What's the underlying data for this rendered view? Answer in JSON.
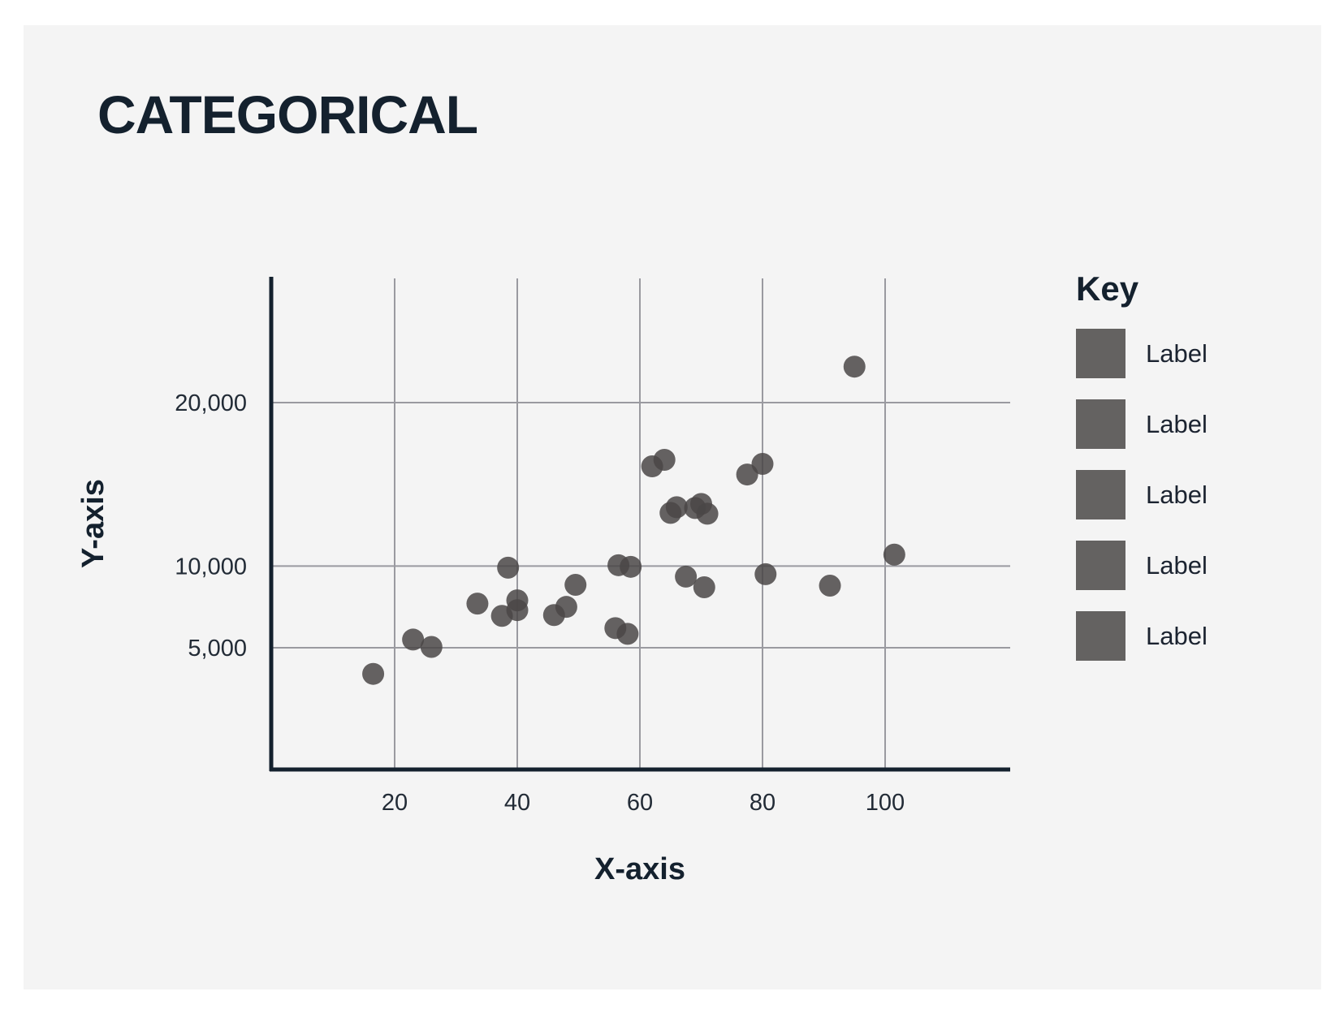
{
  "colors": {
    "background": "#f4f4f4",
    "text": "#14212e",
    "grid": "#9a9aa0",
    "axis": "#14212e",
    "point": "#4a4746",
    "swatch": "#646261"
  },
  "chart_data": {
    "type": "scatter",
    "title": "CATEGORICAL",
    "xlabel": "X-axis",
    "ylabel": "Y-axis",
    "xlim": [
      0,
      120
    ],
    "ylim": [
      0,
      25000
    ],
    "xticks": [
      20,
      40,
      60,
      80,
      100
    ],
    "xtick_labels": [
      "20",
      "40",
      "60",
      "80",
      "100"
    ],
    "yticks": [
      5000,
      10000,
      20000
    ],
    "ytick_labels": [
      "5,000",
      "10,000",
      "20,000"
    ],
    "grid": true,
    "legend_title": "Key",
    "legend_position": "right",
    "legend": [
      "Label",
      "Label",
      "Label",
      "Label",
      "Label"
    ],
    "points": [
      {
        "x": 16.5,
        "y": 3400
      },
      {
        "x": 23,
        "y": 5500
      },
      {
        "x": 26,
        "y": 5050
      },
      {
        "x": 33.5,
        "y": 7700
      },
      {
        "x": 37.5,
        "y": 6950
      },
      {
        "x": 38.5,
        "y": 9900
      },
      {
        "x": 40,
        "y": 7900
      },
      {
        "x": 40,
        "y": 7300
      },
      {
        "x": 46,
        "y": 7000
      },
      {
        "x": 48,
        "y": 7500
      },
      {
        "x": 49.5,
        "y": 8850
      },
      {
        "x": 56,
        "y": 6200
      },
      {
        "x": 56.5,
        "y": 10050
      },
      {
        "x": 58,
        "y": 5850
      },
      {
        "x": 58.5,
        "y": 9950
      },
      {
        "x": 62,
        "y": 16100
      },
      {
        "x": 64,
        "y": 16500
      },
      {
        "x": 65,
        "y": 13250
      },
      {
        "x": 66,
        "y": 13600
      },
      {
        "x": 67.5,
        "y": 9350
      },
      {
        "x": 69,
        "y": 13550
      },
      {
        "x": 70,
        "y": 13800
      },
      {
        "x": 70.5,
        "y": 8700
      },
      {
        "x": 71,
        "y": 13200
      },
      {
        "x": 77.5,
        "y": 15600
      },
      {
        "x": 80,
        "y": 16250
      },
      {
        "x": 80.5,
        "y": 9500
      },
      {
        "x": 91,
        "y": 8800
      },
      {
        "x": 95,
        "y": 22200
      },
      {
        "x": 101.5,
        "y": 10700
      }
    ]
  }
}
